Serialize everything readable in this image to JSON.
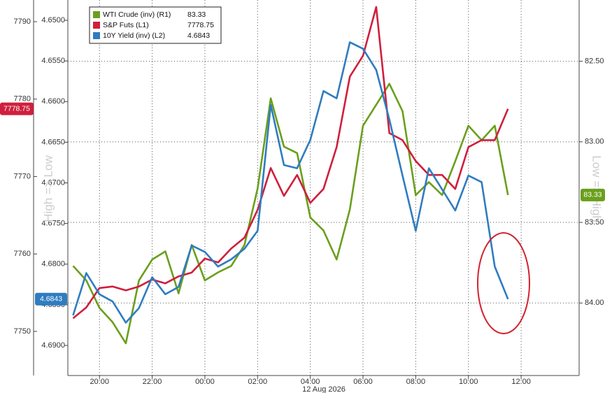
{
  "chart_data": {
    "type": "line",
    "x": [
      19.0,
      19.5,
      20.0,
      20.5,
      21.0,
      21.5,
      22.0,
      22.5,
      23.0,
      23.5,
      24.0,
      24.5,
      25.0,
      25.5,
      26.0,
      26.5,
      27.0,
      27.5,
      28.0,
      28.5,
      29.0,
      29.5,
      30.0,
      30.5,
      31.0,
      31.5,
      32.0,
      32.5,
      33.0,
      33.5,
      34.0,
      34.5,
      35.0,
      35.5
    ],
    "xlim": [
      18.8,
      38.2
    ],
    "xticks": [
      {
        "value": 20,
        "label": "20:00"
      },
      {
        "value": 22,
        "label": "22:00"
      },
      {
        "value": 24,
        "label": "00:00"
      },
      {
        "value": 26,
        "label": "02:00"
      },
      {
        "value": 28,
        "label": "04:00"
      },
      {
        "value": 30,
        "label": "06:00"
      },
      {
        "value": 32,
        "label": "08:00"
      },
      {
        "value": 34,
        "label": "10:00"
      },
      {
        "value": 36,
        "label": "12:00"
      }
    ],
    "x_sublabel": "12 Aug 2026",
    "ylabel_left": "High => Low",
    "ylabel_right": "Low => High",
    "ylim": [
      7744.3,
      7792.8
    ],
    "yticks": [
      7750,
      7760,
      7770,
      7780,
      7790
    ],
    "y2lim": [
      4.6937,
      4.6475
    ],
    "y2ticks": [
      {
        "value": 4.65,
        "label": "4.6500"
      },
      {
        "value": 4.655,
        "label": "4.6550"
      },
      {
        "value": 4.66,
        "label": "4.6600"
      },
      {
        "value": 4.665,
        "label": "4.6650"
      },
      {
        "value": 4.67,
        "label": "4.6700"
      },
      {
        "value": 4.675,
        "label": "4.6750"
      },
      {
        "value": 4.68,
        "label": "4.6800"
      },
      {
        "value": 4.685,
        "label": "4.6850"
      },
      {
        "value": 4.69,
        "label": "4.6900"
      }
    ],
    "y3lim": [
      84.45,
      82.12
    ],
    "y3ticks": [
      {
        "value": 82.5,
        "label": "82.50"
      },
      {
        "value": 83,
        "label": "83.00"
      },
      {
        "value": 83.5,
        "label": "83.50"
      },
      {
        "value": 84,
        "label": "84.00"
      }
    ],
    "grid": true,
    "grid_axis": "y3",
    "series": [
      {
        "name": "WTI Crude (inv) (R1)",
        "color": "#6a9f1c",
        "axis": "y3",
        "values": [
          83.77,
          83.86,
          84.03,
          84.12,
          84.25,
          83.86,
          83.73,
          83.68,
          83.94,
          83.64,
          83.86,
          83.81,
          83.77,
          83.64,
          83.29,
          82.73,
          83.03,
          83.07,
          83.47,
          83.55,
          83.73,
          83.42,
          82.9,
          82.77,
          82.64,
          82.81,
          83.33,
          83.25,
          83.33,
          83.12,
          82.9,
          82.99,
          82.9,
          83.33
        ]
      },
      {
        "name": "S&P Futs (L1)",
        "color": "#cf1f3d",
        "axis": "y",
        "values": [
          7751.7,
          7753.1,
          7755.6,
          7755.8,
          7755.3,
          7755.8,
          7756.7,
          7756.2,
          7757.1,
          7757.6,
          7759.4,
          7758.9,
          7760.7,
          7762.1,
          7765.7,
          7771.1,
          7767.5,
          7770.2,
          7766.6,
          7768.4,
          7773.8,
          7782.9,
          7785.6,
          7791.9,
          7775.6,
          7774.7,
          7772.0,
          7770.2,
          7770.2,
          7768.4,
          7773.8,
          7774.7,
          7774.7,
          7778.75
        ]
      },
      {
        "name": "10Y Yield (inv) (L2)",
        "color": "#2f7cc0",
        "axis": "y2",
        "values": [
          4.6863,
          4.6811,
          4.6837,
          4.6846,
          4.6872,
          4.6854,
          4.6816,
          4.6837,
          4.6828,
          4.6777,
          4.6785,
          4.6803,
          4.6794,
          4.6781,
          4.6759,
          4.6604,
          4.6678,
          4.6682,
          4.6647,
          4.6587,
          4.6596,
          4.6527,
          4.6535,
          4.6561,
          4.6622,
          4.6691,
          4.6759,
          4.6682,
          4.6708,
          4.6734,
          4.6691,
          4.6699,
          4.6803,
          4.6843
        ]
      }
    ]
  }
}
